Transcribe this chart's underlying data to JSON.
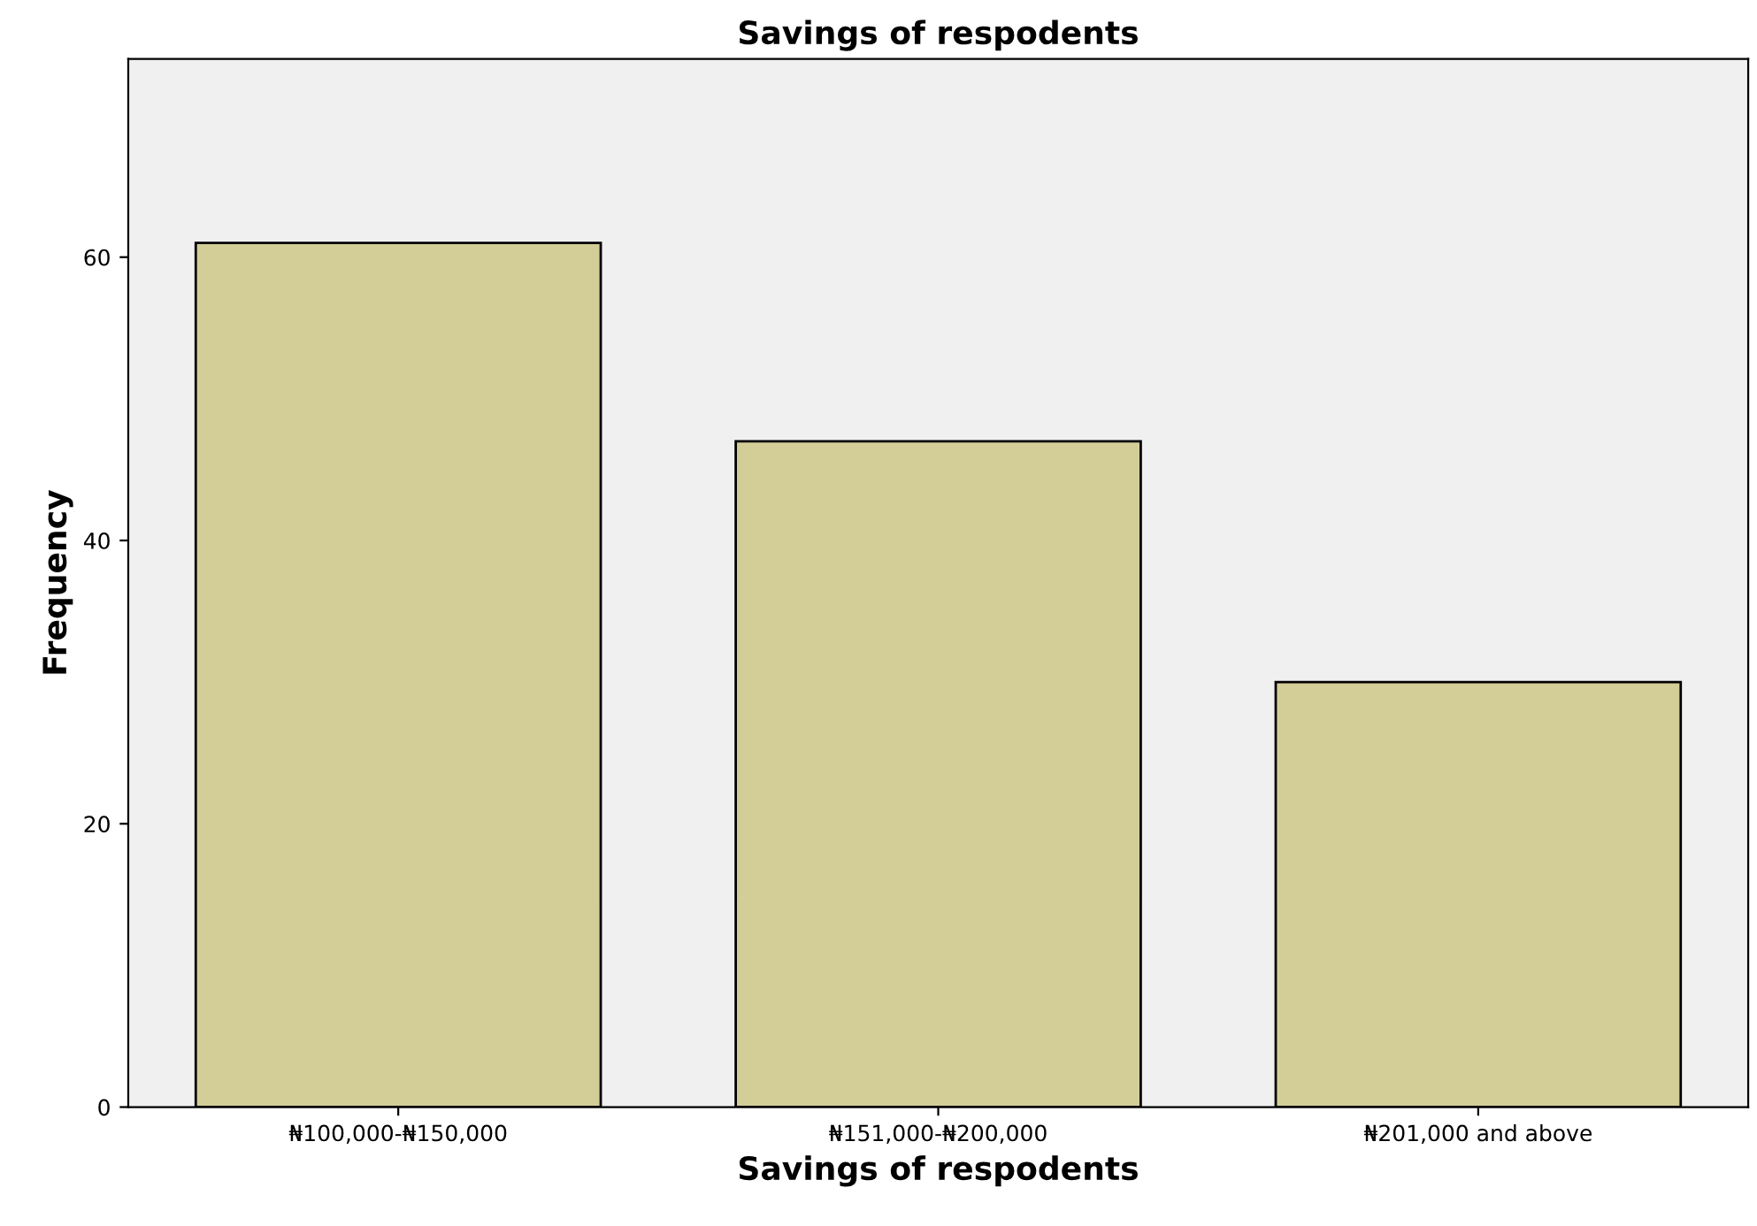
{
  "chart_data": {
    "type": "bar",
    "title": "Savings of respodents",
    "xlabel": "Savings of respodents",
    "ylabel": "Frequency",
    "categories": [
      "₦100,000-₦150,000",
      "₦151,000-₦200,000",
      "₦201,000 and above"
    ],
    "values": [
      61,
      47,
      30
    ],
    "color": "#d3ce97",
    "ylim": [
      0,
      74
    ],
    "yticks": [
      0,
      20,
      40,
      60
    ],
    "grid": false,
    "legend": false
  }
}
